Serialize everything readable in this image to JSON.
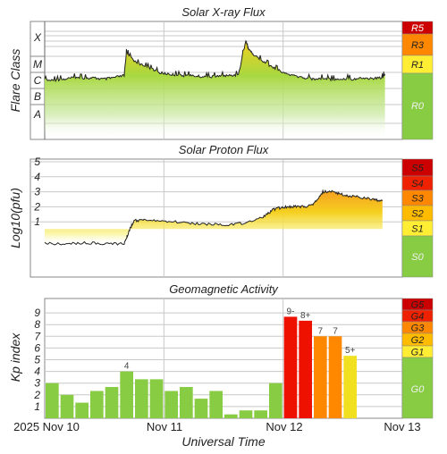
{
  "chart_data": [
    {
      "type": "line",
      "title": "Solar X-ray Flux",
      "ylabel": "Flare Class",
      "y_scale": "log",
      "classes": [
        "A",
        "B",
        "C",
        "M",
        "X"
      ],
      "levels": [
        "A",
        "B",
        "C",
        "M",
        "X"
      ],
      "x_unit": "hours since 2025 Nov 10 00:00 UTC",
      "series": [
        {
          "x": [
            0,
            2,
            4,
            6,
            8,
            10,
            12,
            14,
            16,
            16.5,
            17,
            19,
            21,
            23,
            25,
            27,
            29,
            31,
            33,
            35,
            37,
            39,
            40.5,
            41,
            42,
            44,
            46,
            48,
            50,
            52,
            54,
            56,
            58,
            60,
            62,
            64,
            66,
            68,
            68.5
          ],
          "y": [
            "C1",
            "C1",
            "C1.2",
            "C1.5",
            "C1.3",
            "C1.4",
            "C1.2",
            "C1.5",
            "C2",
            "M7",
            "M3",
            "M1",
            "C6",
            "C3",
            "C2.5",
            "C2",
            "C2",
            "C1.8",
            "C1.6",
            "C1.8",
            "C2",
            "C2.2",
            "X3",
            "X1",
            "M4",
            "M1.5",
            "C6",
            "C3",
            "C2",
            "C1.5",
            "C1.2",
            "C1.3",
            "C1.1",
            "C1.3",
            "C1.2",
            "C1.4",
            "C1.3",
            "C1.5",
            "C2.5"
          ]
        }
      ],
      "scale_labels": [
        "R5",
        "R3",
        "R1",
        "R0"
      ],
      "scale_colors": [
        "#cc0000",
        "#ff8800",
        "#ffee33",
        "#88cc44"
      ]
    },
    {
      "type": "line",
      "title": "Solar Proton Flux",
      "ylabel": "Log10(pfu)",
      "yticks": [
        "1",
        "2",
        "3",
        "4",
        "5"
      ],
      "ylim": [
        -1.7,
        5.9
      ],
      "x_unit": "hours since 2025 Nov 10 00:00 UTC",
      "series": [
        {
          "x": [
            0,
            4,
            8,
            12,
            16,
            17,
            18,
            20,
            24,
            28,
            32,
            36,
            40,
            44,
            46,
            48,
            50,
            52,
            54,
            56,
            58,
            60,
            62,
            64,
            66,
            68
          ],
          "y": [
            -0.45,
            -0.45,
            -0.4,
            -0.45,
            -0.45,
            0.4,
            1.1,
            1.1,
            1.05,
            0.95,
            0.85,
            0.8,
            0.9,
            1.3,
            1.8,
            2.0,
            2.0,
            2.0,
            2.1,
            3.0,
            3.0,
            2.8,
            2.7,
            2.6,
            2.5,
            2.4
          ]
        }
      ],
      "scale_labels": [
        "S5",
        "S4",
        "S3",
        "S2",
        "S1",
        "S0"
      ],
      "scale_colors": [
        "#cc0000",
        "#ee2200",
        "#ff8800",
        "#ffbb00",
        "#ffee33",
        "#88cc44"
      ]
    },
    {
      "type": "bar",
      "title": "Geomagnetic Activity",
      "ylabel": "Kp index",
      "xlabel": "Universal Time",
      "ylim": [
        0,
        9
      ],
      "yticks": [
        "1",
        "2",
        "3",
        "4",
        "5",
        "6",
        "7",
        "8",
        "9"
      ],
      "x_ticks": [
        "2025 Nov 10",
        "Nov 11",
        "Nov 12",
        "Nov 13"
      ],
      "bar_hours": 3,
      "values": [
        3.0,
        2.0,
        1.33,
        2.33,
        2.67,
        4.0,
        3.33,
        3.33,
        2.33,
        2.67,
        1.67,
        2.33,
        0.33,
        0.67,
        0.67,
        3.0,
        8.67,
        8.33,
        7.0,
        7.0,
        5.33
      ],
      "labels": [
        "",
        "",
        "",
        "",
        "",
        "4",
        "",
        "",
        "",
        "",
        "",
        "",
        "",
        "",
        "",
        "",
        "9-",
        "8+",
        "7",
        "7",
        "5+"
      ],
      "scale_labels": [
        "G5",
        "G4",
        "G3",
        "G2",
        "G1",
        "G0"
      ],
      "scale_colors": [
        "#cc0000",
        "#ee2200",
        "#ff8800",
        "#ffbb00",
        "#ffee33",
        "#88cc44"
      ]
    }
  ]
}
